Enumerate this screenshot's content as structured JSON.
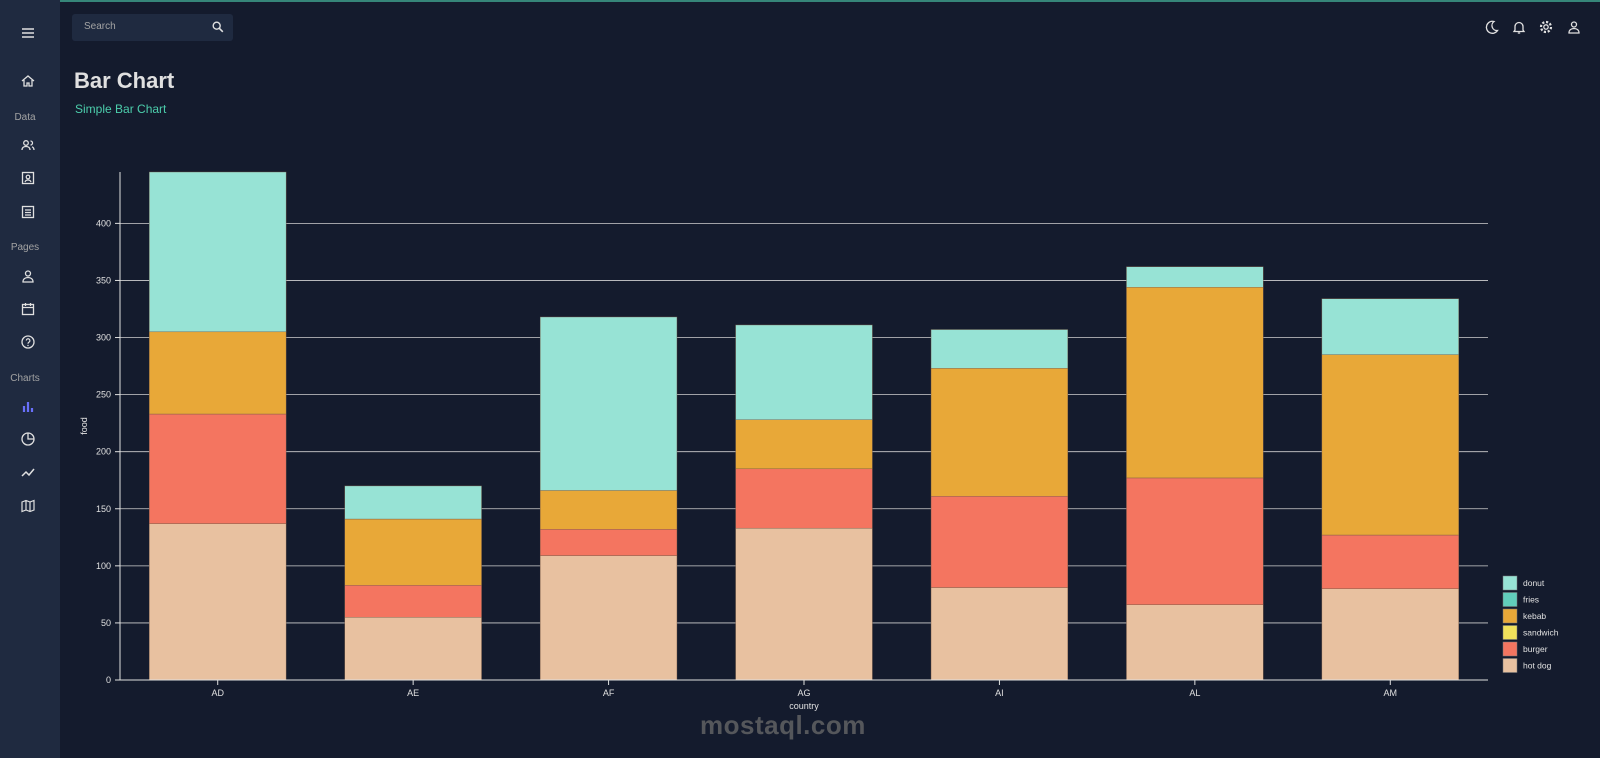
{
  "header": {
    "search_placeholder": "Search"
  },
  "page": {
    "title": "Bar Chart",
    "subtitle": "Simple Bar Chart"
  },
  "sidebar": {
    "sections": [
      "Data",
      "Pages",
      "Charts"
    ]
  },
  "watermark": "mostaql.com",
  "colors": {
    "donut": "#97e3d5",
    "fries": "#61cdbb",
    "kebab": "#e8a838",
    "sandwich": "#f1e15b",
    "burger": "#f47560",
    "hot dog": "#e8c1a0"
  },
  "chart_data": {
    "type": "bar",
    "stacked": true,
    "categories": [
      "AD",
      "AE",
      "AF",
      "AG",
      "AI",
      "AL",
      "AM"
    ],
    "series": [
      {
        "name": "hot dog",
        "values": [
          137,
          55,
          109,
          133,
          81,
          66,
          80
        ]
      },
      {
        "name": "burger",
        "values": [
          96,
          28,
          23,
          52,
          80,
          111,
          47
        ]
      },
      {
        "name": "sandwich",
        "values": [
          0,
          0,
          0,
          0,
          0,
          0,
          0
        ]
      },
      {
        "name": "kebab",
        "values": [
          72,
          58,
          34,
          43,
          112,
          167,
          158
        ]
      },
      {
        "name": "fries",
        "values": [
          0,
          0,
          0,
          0,
          0,
          0,
          0
        ]
      },
      {
        "name": "donut",
        "values": [
          140,
          29,
          152,
          83,
          34,
          18,
          49
        ]
      }
    ],
    "legend": [
      "donut",
      "fries",
      "kebab",
      "sandwich",
      "burger",
      "hot dog"
    ],
    "xlabel": "country",
    "ylabel": "food",
    "yticks": [
      0,
      50,
      100,
      150,
      200,
      250,
      300,
      350,
      400
    ],
    "ylim": [
      0,
      445
    ],
    "grid": true,
    "legend_position": "bottom-right"
  }
}
